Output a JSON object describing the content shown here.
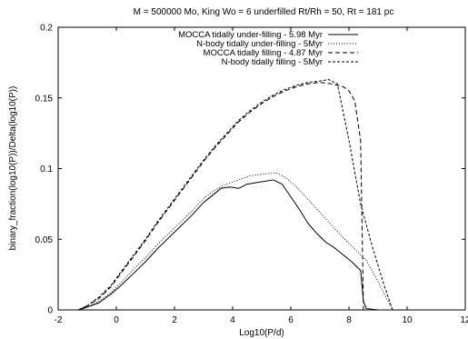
{
  "chart_data": {
    "type": "line",
    "title": "M = 500000 Mo, King Wo = 6  underfilled Rt/Rh = 50, Rt = 181 pc",
    "xlabel": "Log10(P/d)",
    "ylabel": "binary_fraction(log10(P))/Delta(log10(P))",
    "xlim": [
      -2,
      12
    ],
    "ylim": [
      0,
      0.2
    ],
    "x_ticks": [
      -2,
      0,
      2,
      4,
      6,
      8,
      10,
      12
    ],
    "x_tick_labels": [
      "-2",
      "0",
      "2",
      "4",
      "6",
      "8",
      "10",
      "12"
    ],
    "y_ticks": [
      0,
      0.05,
      0.1,
      0.15,
      0.2
    ],
    "y_tick_labels": [
      "0",
      "0.05",
      "0.1",
      "0.15",
      "0.2"
    ],
    "legend_position": "top-left",
    "series": [
      {
        "name": "MOCCA tidally under-filling  -  5.98 Myr",
        "style": "solid",
        "color": "#000000",
        "x": [
          -1.3,
          -1.0,
          -0.6,
          -0.2,
          0.2,
          0.6,
          1.0,
          1.4,
          1.8,
          2.2,
          2.6,
          3.0,
          3.3,
          3.6,
          3.9,
          4.2,
          4.5,
          4.8,
          5.1,
          5.4,
          5.7,
          6.0,
          6.3,
          6.6,
          6.9,
          7.2,
          7.5,
          7.8,
          8.1,
          8.4,
          8.5,
          8.6,
          9.0,
          9.5,
          11.5
        ],
        "y": [
          0.0,
          0.002,
          0.005,
          0.011,
          0.018,
          0.026,
          0.034,
          0.043,
          0.051,
          0.059,
          0.067,
          0.076,
          0.081,
          0.086,
          0.087,
          0.086,
          0.089,
          0.09,
          0.091,
          0.092,
          0.089,
          0.08,
          0.071,
          0.061,
          0.054,
          0.048,
          0.044,
          0.039,
          0.034,
          0.028,
          0.006,
          0.001,
          0.0,
          0.0,
          0.0
        ]
      },
      {
        "name": "N-body tidally under-filling  -  5Myr",
        "style": "dotted",
        "color": "#000000",
        "x": [
          -1.3,
          -1.0,
          -0.6,
          -0.2,
          0.2,
          0.6,
          1.0,
          1.4,
          1.8,
          2.2,
          2.6,
          3.0,
          3.4,
          3.8,
          4.2,
          4.6,
          5.0,
          5.5,
          5.8,
          6.2,
          6.6,
          7.0,
          7.4,
          7.8,
          8.2,
          8.6,
          9.0,
          9.5,
          11.5
        ],
        "y": [
          0.0,
          0.002,
          0.006,
          0.012,
          0.02,
          0.029,
          0.037,
          0.046,
          0.054,
          0.062,
          0.07,
          0.079,
          0.085,
          0.089,
          0.092,
          0.095,
          0.096,
          0.097,
          0.094,
          0.087,
          0.078,
          0.069,
          0.06,
          0.051,
          0.043,
          0.035,
          0.02,
          0.0,
          0.0
        ]
      },
      {
        "name": "MOCCA tidally filling  -  4.87 Myr",
        "style": "dashed",
        "color": "#000000",
        "x": [
          -1.3,
          -1.0,
          -0.6,
          -0.2,
          0.2,
          0.6,
          1.0,
          1.4,
          1.8,
          2.2,
          2.6,
          3.0,
          3.4,
          3.8,
          4.2,
          4.6,
          5.0,
          5.4,
          5.8,
          6.2,
          6.6,
          7.0,
          7.4,
          7.8,
          8.0,
          8.2,
          8.4,
          8.5,
          8.6,
          9.0,
          11.5
        ],
        "y": [
          0.0,
          0.003,
          0.008,
          0.016,
          0.027,
          0.038,
          0.049,
          0.061,
          0.072,
          0.083,
          0.094,
          0.105,
          0.115,
          0.124,
          0.133,
          0.14,
          0.146,
          0.151,
          0.155,
          0.158,
          0.16,
          0.161,
          0.16,
          0.158,
          0.155,
          0.148,
          0.12,
          0.0,
          0.0,
          0.0,
          0.0
        ]
      },
      {
        "name": "N-body tidally filling  -  5Myr",
        "style": "short-dashed",
        "color": "#000000",
        "x": [
          -1.3,
          -1.0,
          -0.6,
          -0.2,
          0.2,
          0.6,
          1.0,
          1.4,
          1.8,
          2.2,
          2.6,
          3.0,
          3.4,
          3.8,
          4.2,
          4.6,
          5.0,
          5.4,
          5.8,
          6.2,
          6.6,
          7.0,
          7.3,
          7.6,
          8.0,
          8.4,
          8.8,
          9.2,
          9.5,
          11.5
        ],
        "y": [
          0.0,
          0.003,
          0.009,
          0.017,
          0.028,
          0.039,
          0.05,
          0.062,
          0.073,
          0.084,
          0.095,
          0.106,
          0.116,
          0.125,
          0.134,
          0.141,
          0.147,
          0.152,
          0.156,
          0.159,
          0.161,
          0.162,
          0.163,
          0.16,
          0.12,
          0.075,
          0.045,
          0.018,
          0.0,
          0.0
        ]
      }
    ]
  }
}
